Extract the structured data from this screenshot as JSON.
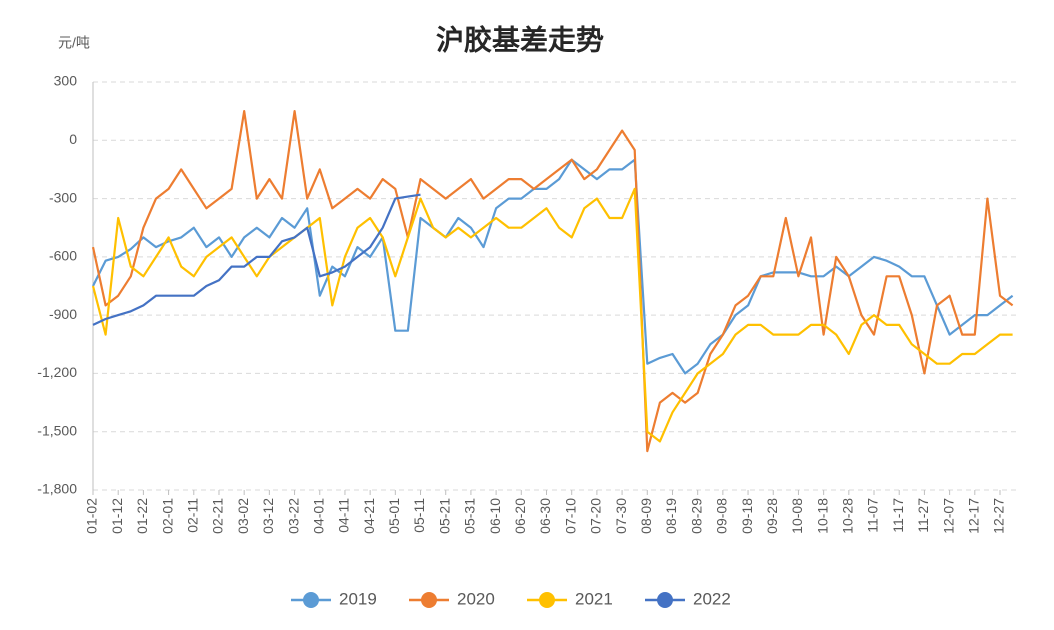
{
  "chart_data": {
    "type": "line",
    "title": "沪胶基差走势",
    "y_label": "元/吨",
    "categories": [
      "01-02",
      null,
      "01-12",
      null,
      "01-22",
      null,
      "02-01",
      null,
      "02-11",
      null,
      "02-21",
      null,
      "03-02",
      null,
      "03-12",
      null,
      "03-22",
      null,
      "04-01",
      null,
      "04-11",
      null,
      "04-21",
      null,
      "05-01",
      null,
      "05-11",
      null,
      "05-21",
      null,
      "05-31",
      null,
      "06-10",
      null,
      "06-20",
      null,
      "06-30",
      null,
      "07-10",
      null,
      "07-20",
      null,
      "07-30",
      null,
      "08-09",
      null,
      "08-19",
      null,
      "08-29",
      null,
      "09-08",
      null,
      "09-18",
      null,
      "09-28",
      null,
      "10-08",
      null,
      "10-18",
      null,
      "10-28",
      null,
      "11-07",
      null,
      "11-17",
      null,
      "11-27",
      null,
      "12-07",
      null,
      "12-17",
      null,
      "12-27",
      null
    ],
    "series": [
      {
        "name": "2019",
        "color": "#5b9bd5",
        "values": [
          -750,
          -620,
          -600,
          -560,
          -500,
          -550,
          -520,
          -500,
          -450,
          -550,
          -500,
          -600,
          -500,
          -450,
          -500,
          -400,
          -450,
          -350,
          -800,
          -650,
          -700,
          -550,
          -600,
          -500,
          -980,
          -980,
          -400,
          -450,
          -500,
          -400,
          -450,
          -550,
          -350,
          -300,
          -300,
          -250,
          -250,
          -200,
          -100,
          -150,
          -200,
          -150,
          -150,
          -100,
          -1150,
          -1120,
          -1100,
          -1200,
          -1150,
          -1050,
          -1000,
          -900,
          -850,
          -700,
          -680,
          -680,
          -680,
          -700,
          -700,
          -650,
          -700,
          -650,
          -600,
          -620,
          -650,
          -700,
          -700,
          -850,
          -1000,
          -950,
          -900,
          -900,
          -850,
          -800
        ]
      },
      {
        "name": "2020",
        "color": "#ed7d31",
        "values": [
          -550,
          -850,
          -800,
          -700,
          -450,
          -300,
          -250,
          -150,
          -250,
          -350,
          -300,
          -250,
          150,
          -300,
          -200,
          -300,
          150,
          -300,
          -150,
          -350,
          -300,
          -250,
          -300,
          -200,
          -250,
          -500,
          -200,
          -250,
          -300,
          -250,
          -200,
          -300,
          -250,
          -200,
          -200,
          -250,
          -200,
          -150,
          -100,
          -200,
          -150,
          -50,
          50,
          -50,
          -1600,
          -1350,
          -1300,
          -1350,
          -1300,
          -1100,
          -1000,
          -850,
          -800,
          -700,
          -700,
          -400,
          -700,
          -500,
          -1000,
          -600,
          -700,
          -900,
          -1000,
          -700,
          -700,
          -900,
          -1200,
          -850,
          -800,
          -1000,
          -1000,
          -300,
          -800,
          -850
        ]
      },
      {
        "name": "2021",
        "color": "#ffc000",
        "values": [
          -750,
          -1000,
          -400,
          -650,
          -700,
          -600,
          -500,
          -650,
          -700,
          -600,
          -550,
          -500,
          -600,
          -700,
          -600,
          -550,
          -500,
          -450,
          -400,
          -850,
          -600,
          -450,
          -400,
          -500,
          -700,
          -500,
          -300,
          -450,
          -500,
          -450,
          -500,
          -450,
          -400,
          -450,
          -450,
          -400,
          -350,
          -450,
          -500,
          -350,
          -300,
          -400,
          -400,
          -250,
          -1500,
          -1550,
          -1400,
          -1300,
          -1200,
          -1150,
          -1100,
          -1000,
          -950,
          -950,
          -1000,
          -1000,
          -1000,
          -950,
          -950,
          -1000,
          -1100,
          -950,
          -900,
          -950,
          -950,
          -1050,
          -1100,
          -1150,
          -1150,
          -1100,
          -1100,
          -1050,
          -1000,
          -1000
        ]
      },
      {
        "name": "2022",
        "color": "#4472c4",
        "values": [
          -950,
          -920,
          -900,
          -880,
          -850,
          -800,
          -800,
          -800,
          -800,
          -750,
          -720,
          -650,
          -650,
          -600,
          -600,
          -520,
          -500,
          -450,
          -700,
          -680,
          -650,
          -600,
          -550,
          -450,
          -300,
          -290,
          -280,
          null,
          null,
          null,
          null,
          null,
          null,
          null,
          null,
          null,
          null,
          null,
          null,
          null,
          null,
          null,
          null,
          null,
          null,
          null,
          null,
          null,
          null,
          null,
          null,
          null,
          null,
          null,
          null,
          null,
          null,
          null,
          null,
          null,
          null,
          null,
          null,
          null,
          null,
          null,
          null,
          null,
          null,
          null,
          null,
          null,
          null,
          null
        ]
      }
    ],
    "ylim": [
      -1800,
      300
    ],
    "yticks": [
      {
        "value": -1800,
        "label": "-1,800"
      },
      {
        "value": -1500,
        "label": "-1,500"
      },
      {
        "value": -1200,
        "label": "-1,200"
      },
      -900,
      -600,
      -300,
      0,
      300
    ],
    "grid": true,
    "legend": "bottom"
  }
}
